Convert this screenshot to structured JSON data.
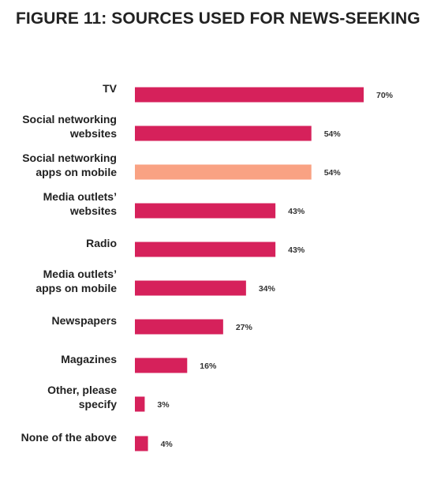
{
  "title": "FIGURE 11: SOURCES USED FOR NEWS-SEEKING",
  "chart_data": {
    "type": "bar",
    "orientation": "horizontal",
    "title": "FIGURE 11: SOURCES USED FOR NEWS-SEEKING",
    "xlabel": "",
    "ylabel": "",
    "unit": "%",
    "xlim": [
      0,
      70
    ],
    "grid": false,
    "legend": "none",
    "categories": [
      [
        "TV"
      ],
      [
        "Social networking",
        "websites"
      ],
      [
        "Social networking",
        "apps on mobile"
      ],
      [
        "Media outlets’",
        "websites"
      ],
      [
        "Radio"
      ],
      [
        "Media outlets’",
        "apps on mobile"
      ],
      [
        "Newspapers"
      ],
      [
        "Magazines"
      ],
      [
        "Other, please",
        "specify"
      ],
      [
        "None of the above"
      ]
    ],
    "values": [
      70,
      54,
      54,
      43,
      43,
      34,
      27,
      16,
      3,
      4
    ],
    "value_labels": [
      "70%",
      "54%",
      "54%",
      "43%",
      "43%",
      "34%",
      "27%",
      "16%",
      "3%",
      "4%"
    ],
    "colors": [
      "#d6215b",
      "#d6215b",
      "#f9a283",
      "#d6215b",
      "#d6215b",
      "#d6215b",
      "#d6215b",
      "#d6215b",
      "#d6215b",
      "#d6215b"
    ]
  }
}
